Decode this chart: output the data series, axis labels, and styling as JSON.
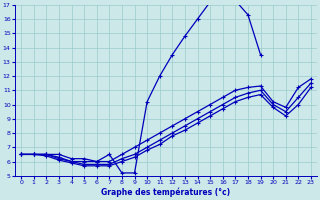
{
  "xlabel": "Graphe des températures (°c)",
  "bg_color": "#cce8e8",
  "line_color": "#0000bb",
  "grid_color": "#99cccc",
  "xlim": [
    -0.5,
    23.5
  ],
  "ylim": [
    5,
    17
  ],
  "xticks": [
    0,
    1,
    2,
    3,
    4,
    5,
    6,
    7,
    8,
    9,
    10,
    11,
    12,
    13,
    14,
    15,
    16,
    17,
    18,
    19,
    20,
    21,
    22,
    23
  ],
  "yticks": [
    5,
    6,
    7,
    8,
    9,
    10,
    11,
    12,
    13,
    14,
    15,
    16,
    17
  ],
  "series": [
    {
      "x": [
        0,
        1,
        2,
        3,
        4,
        5,
        6,
        7,
        8,
        9,
        10,
        11,
        12,
        13,
        14,
        15,
        16,
        17,
        18,
        19,
        20,
        21,
        22,
        23
      ],
      "y": [
        6.5,
        6.5,
        6.5,
        6.5,
        6.2,
        6.2,
        6.0,
        6.5,
        5.2,
        5.2,
        10.2,
        12.0,
        13.5,
        14.8,
        16.0,
        17.2,
        17.4,
        17.3,
        16.3,
        13.5,
        null,
        null,
        null,
        null
      ]
    },
    {
      "x": [
        0,
        1,
        2,
        3,
        4,
        5,
        6,
        7,
        8,
        9,
        10,
        11,
        12,
        13,
        14,
        15,
        16,
        17,
        18,
        19,
        20,
        21,
        22,
        23
      ],
      "y": [
        6.5,
        6.5,
        6.5,
        6.3,
        6.0,
        6.0,
        6.0,
        6.0,
        6.5,
        7.0,
        7.5,
        8.0,
        8.5,
        9.0,
        9.5,
        10.0,
        10.5,
        11.0,
        11.2,
        11.3,
        10.2,
        9.8,
        11.2,
        11.8
      ]
    },
    {
      "x": [
        0,
        1,
        2,
        3,
        4,
        5,
        6,
        7,
        8,
        9,
        10,
        11,
        12,
        13,
        14,
        15,
        16,
        17,
        18,
        19,
        20,
        21,
        22,
        23
      ],
      "y": [
        6.5,
        6.5,
        6.5,
        6.2,
        6.0,
        5.8,
        5.8,
        5.8,
        6.2,
        6.5,
        7.0,
        7.5,
        8.0,
        8.5,
        9.0,
        9.5,
        10.0,
        10.5,
        10.8,
        11.0,
        10.0,
        9.5,
        10.5,
        11.5
      ]
    },
    {
      "x": [
        0,
        1,
        2,
        3,
        4,
        5,
        6,
        7,
        8,
        9,
        10,
        11,
        12,
        13,
        14,
        15,
        16,
        17,
        18,
        19,
        20,
        21,
        22,
        23
      ],
      "y": [
        6.5,
        6.5,
        6.4,
        6.1,
        5.9,
        5.7,
        5.7,
        5.7,
        6.0,
        6.3,
        6.8,
        7.2,
        7.8,
        8.2,
        8.7,
        9.2,
        9.7,
        10.2,
        10.5,
        10.7,
        9.8,
        9.2,
        10.0,
        11.2
      ]
    }
  ]
}
